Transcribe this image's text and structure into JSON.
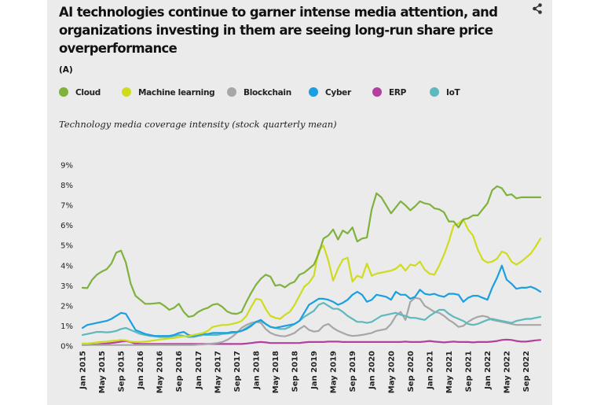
{
  "title": "AI technologies continue to garner intense media attention, and organizations investing in them are seeing long-run share price overperformance",
  "panel_label": "(A)",
  "share_icon": "share-icon",
  "chart_data": {
    "type": "line",
    "title": "AI technologies continue to garner intense media attention, and organizations investing in them are seeing long-run share price overperformance",
    "subtitle": "Technology media coverage intensity (stock quarterly mean)",
    "xlabel": "",
    "ylabel": "",
    "ylim": [
      0,
      9
    ],
    "yticks": [
      0,
      1,
      2,
      3,
      4,
      5,
      6,
      7,
      8,
      9
    ],
    "ytick_labels": [
      "0%",
      "1%",
      "2%",
      "3%",
      "4%",
      "5%",
      "6%",
      "7%",
      "8%",
      "9%"
    ],
    "x_start": "Jan 2015",
    "x_interval": "monthly",
    "num_points": 96,
    "xtick_indices": [
      0,
      4,
      8,
      12,
      16,
      20,
      24,
      28,
      32,
      36,
      40,
      44,
      48,
      52,
      56,
      60,
      64,
      68,
      72,
      76,
      80,
      84,
      88,
      92
    ],
    "xtick_labels": [
      "Jan 2015",
      "May 2015",
      "Sep 2015",
      "Jan 2016",
      "May 2016",
      "Sep 2016",
      "Jan 2017",
      "May 2017",
      "Sep 2017",
      "Jan 2018",
      "May 2018",
      "Sep 2018",
      "Jan 2019",
      "May 2019",
      "Sep 2019",
      "Jan 2020",
      "May 2020",
      "Sep 2020",
      "Jan 2021",
      "May 2021",
      "Sep 2021",
      "Jan 2022",
      "May 2022",
      "Sep 2022"
    ],
    "grid": false,
    "legend_position": "top-left",
    "series": [
      {
        "name": "Cloud",
        "color": "#7fb13c",
        "values": [
          2.9,
          2.88,
          3.3,
          3.55,
          3.7,
          3.82,
          4.1,
          4.65,
          4.75,
          4.15,
          3.1,
          2.5,
          2.3,
          2.1,
          2.1,
          2.12,
          2.15,
          2.0,
          1.8,
          1.9,
          2.1,
          1.7,
          1.45,
          1.5,
          1.7,
          1.82,
          1.9,
          2.05,
          2.1,
          1.95,
          1.72,
          1.62,
          1.6,
          1.7,
          2.2,
          2.65,
          3.05,
          3.35,
          3.55,
          3.45,
          3.0,
          3.05,
          2.92,
          3.1,
          3.2,
          3.55,
          3.65,
          3.85,
          4.05,
          4.6,
          5.35,
          5.5,
          5.8,
          5.3,
          5.75,
          5.6,
          5.9,
          5.2,
          5.35,
          5.4,
          6.8,
          7.6,
          7.4,
          7.0,
          6.6,
          6.9,
          7.2,
          7.0,
          6.75,
          6.95,
          7.2,
          7.1,
          7.05,
          6.85,
          6.8,
          6.65,
          6.2,
          6.2,
          5.9,
          6.3,
          6.35,
          6.5,
          6.5,
          6.8,
          7.1,
          7.75,
          7.95,
          7.85,
          7.5,
          7.55,
          7.35,
          7.4,
          7.4,
          7.4,
          7.4,
          7.4
        ]
      },
      {
        "name": "Machine learning",
        "color": "#cfdc1e",
        "values": [
          0.12,
          0.12,
          0.15,
          0.18,
          0.2,
          0.22,
          0.25,
          0.27,
          0.3,
          0.28,
          0.22,
          0.2,
          0.2,
          0.22,
          0.25,
          0.28,
          0.32,
          0.35,
          0.38,
          0.4,
          0.45,
          0.48,
          0.5,
          0.55,
          0.6,
          0.65,
          0.75,
          0.95,
          1.0,
          1.05,
          1.05,
          1.1,
          1.15,
          1.25,
          1.5,
          1.95,
          2.35,
          2.3,
          1.85,
          1.5,
          1.4,
          1.35,
          1.55,
          1.7,
          2.05,
          2.5,
          2.95,
          3.15,
          3.5,
          4.75,
          5.0,
          4.25,
          3.25,
          3.85,
          4.3,
          4.4,
          3.2,
          3.5,
          3.4,
          4.1,
          3.5,
          3.6,
          3.65,
          3.7,
          3.75,
          3.85,
          4.05,
          3.75,
          4.05,
          4.0,
          4.2,
          3.8,
          3.6,
          3.55,
          4.0,
          4.55,
          5.2,
          6.0,
          6.1,
          6.3,
          5.8,
          5.5,
          4.8,
          4.3,
          4.15,
          4.2,
          4.35,
          4.7,
          4.6,
          4.2,
          4.05,
          4.2,
          4.4,
          4.6,
          4.95,
          5.35
        ]
      },
      {
        "name": "Blockchain",
        "color": "#a6a6a6",
        "values": [
          0.05,
          0.05,
          0.05,
          0.05,
          0.05,
          0.05,
          0.05,
          0.05,
          0.05,
          0.05,
          0.05,
          0.05,
          0.05,
          0.05,
          0.05,
          0.05,
          0.05,
          0.05,
          0.05,
          0.05,
          0.05,
          0.05,
          0.05,
          0.05,
          0.07,
          0.08,
          0.1,
          0.12,
          0.15,
          0.2,
          0.3,
          0.45,
          0.65,
          0.9,
          1.05,
          1.15,
          1.2,
          1.15,
          0.85,
          0.65,
          0.55,
          0.5,
          0.48,
          0.55,
          0.65,
          0.85,
          1.0,
          0.8,
          0.72,
          0.75,
          1.0,
          1.1,
          0.9,
          0.75,
          0.65,
          0.55,
          0.5,
          0.52,
          0.55,
          0.6,
          0.65,
          0.75,
          0.8,
          0.85,
          1.1,
          1.5,
          1.7,
          1.3,
          2.2,
          2.4,
          2.35,
          2.0,
          1.85,
          1.7,
          1.65,
          1.5,
          1.3,
          1.15,
          0.95,
          1.0,
          1.2,
          1.35,
          1.45,
          1.5,
          1.45,
          1.3,
          1.25,
          1.2,
          1.15,
          1.1,
          1.05,
          1.05,
          1.05,
          1.05,
          1.05,
          1.05
        ]
      },
      {
        "name": "Cyber",
        "color": "#1a9fe0",
        "values": [
          0.9,
          1.05,
          1.1,
          1.15,
          1.2,
          1.25,
          1.35,
          1.5,
          1.65,
          1.6,
          1.2,
          0.8,
          0.7,
          0.6,
          0.55,
          0.5,
          0.5,
          0.5,
          0.5,
          0.55,
          0.65,
          0.7,
          0.55,
          0.5,
          0.55,
          0.6,
          0.6,
          0.65,
          0.65,
          0.65,
          0.65,
          0.7,
          0.7,
          0.75,
          0.85,
          1.0,
          1.2,
          1.3,
          1.1,
          0.95,
          0.9,
          0.95,
          1.0,
          1.05,
          1.1,
          1.25,
          1.65,
          2.05,
          2.2,
          2.35,
          2.35,
          2.3,
          2.2,
          2.05,
          2.15,
          2.3,
          2.55,
          2.7,
          2.55,
          2.2,
          2.3,
          2.55,
          2.5,
          2.45,
          2.3,
          2.7,
          2.55,
          2.55,
          2.35,
          2.45,
          2.8,
          2.6,
          2.55,
          2.6,
          2.5,
          2.45,
          2.6,
          2.6,
          2.55,
          2.2,
          2.4,
          2.5,
          2.5,
          2.4,
          2.3,
          2.9,
          3.4,
          4.0,
          3.3,
          3.1,
          2.85,
          2.9,
          2.9,
          2.95,
          2.85,
          2.7
        ]
      },
      {
        "name": "ERP",
        "color": "#b2409c",
        "values": [
          0.05,
          0.06,
          0.07,
          0.08,
          0.1,
          0.12,
          0.15,
          0.18,
          0.22,
          0.25,
          0.2,
          0.12,
          0.1,
          0.1,
          0.1,
          0.1,
          0.1,
          0.1,
          0.1,
          0.1,
          0.1,
          0.1,
          0.1,
          0.1,
          0.1,
          0.1,
          0.1,
          0.1,
          0.1,
          0.1,
          0.1,
          0.1,
          0.1,
          0.1,
          0.12,
          0.15,
          0.18,
          0.2,
          0.18,
          0.15,
          0.15,
          0.15,
          0.15,
          0.15,
          0.15,
          0.15,
          0.18,
          0.2,
          0.2,
          0.2,
          0.2,
          0.22,
          0.22,
          0.22,
          0.2,
          0.2,
          0.2,
          0.2,
          0.2,
          0.2,
          0.2,
          0.2,
          0.2,
          0.2,
          0.2,
          0.2,
          0.2,
          0.22,
          0.2,
          0.2,
          0.2,
          0.22,
          0.25,
          0.22,
          0.2,
          0.18,
          0.2,
          0.22,
          0.2,
          0.2,
          0.2,
          0.18,
          0.2,
          0.2,
          0.2,
          0.22,
          0.25,
          0.3,
          0.32,
          0.3,
          0.25,
          0.22,
          0.22,
          0.25,
          0.28,
          0.3
        ]
      },
      {
        "name": "IoT",
        "color": "#5db9bd",
        "values": [
          0.55,
          0.6,
          0.65,
          0.7,
          0.7,
          0.68,
          0.7,
          0.75,
          0.85,
          0.9,
          0.8,
          0.7,
          0.6,
          0.55,
          0.5,
          0.48,
          0.45,
          0.45,
          0.45,
          0.5,
          0.55,
          0.5,
          0.45,
          0.45,
          0.5,
          0.55,
          0.55,
          0.55,
          0.55,
          0.6,
          0.62,
          0.65,
          0.68,
          0.75,
          0.9,
          1.05,
          1.2,
          1.25,
          1.1,
          0.95,
          0.9,
          0.85,
          0.85,
          0.95,
          1.1,
          1.25,
          1.45,
          1.6,
          1.75,
          2.05,
          2.15,
          2.0,
          1.85,
          1.85,
          1.7,
          1.5,
          1.35,
          1.2,
          1.2,
          1.15,
          1.2,
          1.35,
          1.5,
          1.55,
          1.6,
          1.65,
          1.55,
          1.5,
          1.4,
          1.4,
          1.35,
          1.3,
          1.5,
          1.65,
          1.8,
          1.8,
          1.6,
          1.45,
          1.35,
          1.25,
          1.1,
          1.05,
          1.1,
          1.2,
          1.3,
          1.35,
          1.3,
          1.25,
          1.2,
          1.15,
          1.25,
          1.3,
          1.35,
          1.35,
          1.4,
          1.45
        ]
      }
    ]
  }
}
